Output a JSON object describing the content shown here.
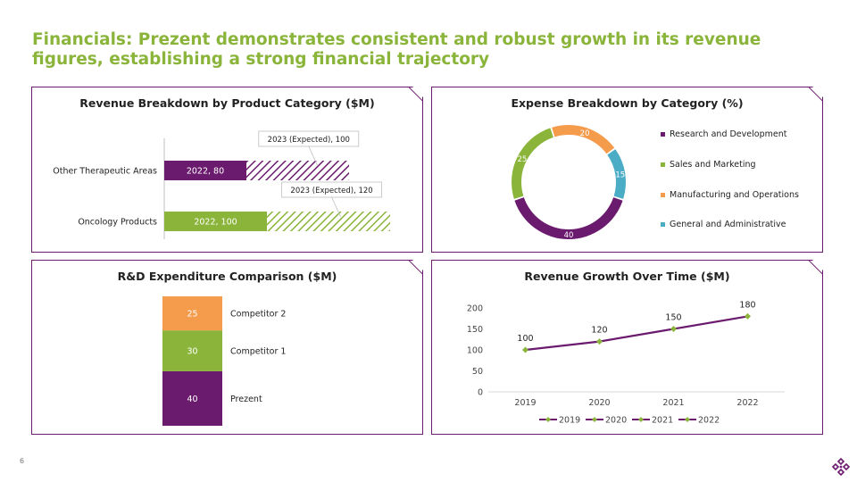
{
  "title": "Financials: Prezent demonstrates consistent and robust growth in its revenue figures, establishing a strong financial trajectory",
  "page_number": "6",
  "colors": {
    "purple": "#6b1b6e",
    "green": "#8ab43a",
    "orange": "#f59b4c",
    "blue": "#4bacc6",
    "title_green": "#8ab43a"
  },
  "logo_icon": "flower-logo-icon",
  "chart_data": [
    {
      "type": "bar",
      "orientation": "horizontal",
      "stacked": true,
      "title": "Revenue Breakdown by Product Category ($M)",
      "categories": [
        "Other Therapeutic Areas",
        "Oncology Products"
      ],
      "series": [
        {
          "name": "2022",
          "values": [
            80,
            100
          ],
          "labels": [
            "2022, 80",
            "2022, 100"
          ],
          "colors": [
            "#6b1b6e",
            "#8ab43a"
          ],
          "pattern": "solid"
        },
        {
          "name": "2023 (Expected)",
          "values": [
            100,
            120
          ],
          "labels": [
            "2023 (Expected), 100",
            "2023 (Expected), 120"
          ],
          "colors": [
            "#6b1b6e",
            "#8ab43a"
          ],
          "pattern": "hatched"
        }
      ]
    },
    {
      "type": "pie",
      "donut": true,
      "title": "Expense Breakdown by Category (%)",
      "slices": [
        {
          "label": "Research and Development",
          "value": 40,
          "color": "#6b1b6e"
        },
        {
          "label": "Sales and Marketing",
          "value": 25,
          "color": "#8ab43a"
        },
        {
          "label": "Manufacturing and Operations",
          "value": 20,
          "color": "#f59b4c"
        },
        {
          "label": "General and Administrative",
          "value": 15,
          "color": "#4bacc6"
        }
      ],
      "legend": "right"
    },
    {
      "type": "bar",
      "stacked": true,
      "title": "R&D Expenditure Comparison ($M)",
      "segments": [
        {
          "label": "Prezent",
          "value": 40,
          "color": "#6b1b6e"
        },
        {
          "label": "Competitor 1",
          "value": 30,
          "color": "#8ab43a"
        },
        {
          "label": "Competitor 2",
          "value": 25,
          "color": "#f59b4c"
        }
      ]
    },
    {
      "type": "line",
      "title": "Revenue Growth Over Time ($M)",
      "x": [
        "2019",
        "2020",
        "2021",
        "2022"
      ],
      "values": [
        100,
        120,
        150,
        180
      ],
      "yticks": [
        "0",
        "50",
        "100",
        "150",
        "200"
      ],
      "ylim": [
        0,
        200
      ],
      "line_color": "#6b1b6e",
      "marker_color": "#8ab43a",
      "legend": [
        "2019",
        "2020",
        "2021",
        "2022"
      ],
      "legend_position": "bottom"
    }
  ]
}
